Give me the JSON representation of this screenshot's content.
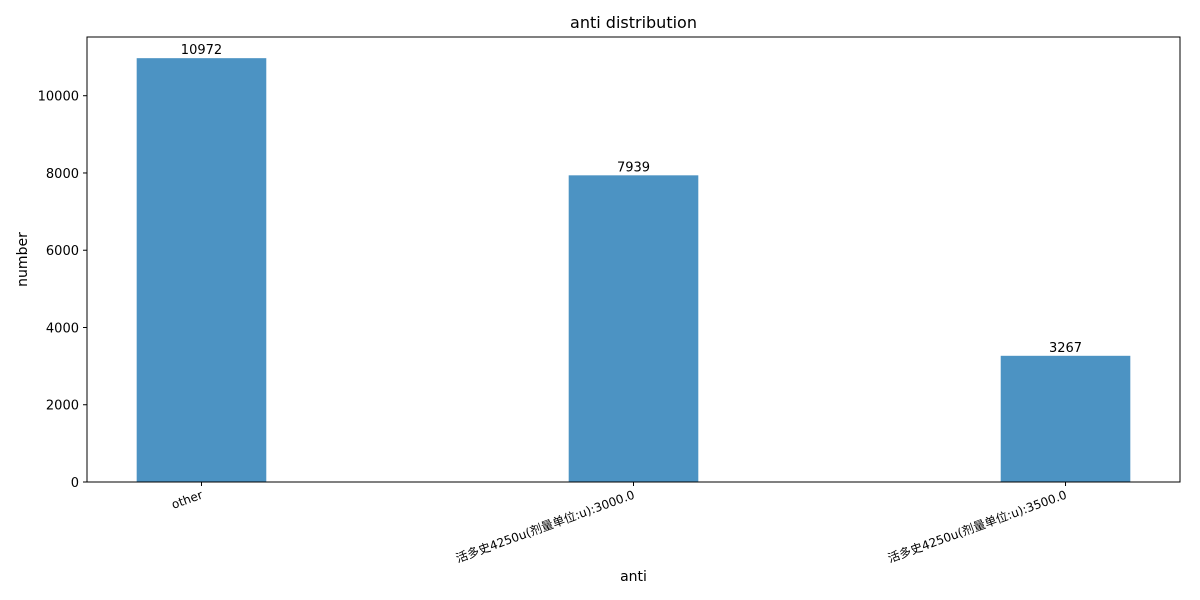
{
  "chart_data": {
    "type": "bar",
    "title": "anti distribution",
    "xlabel": "anti",
    "ylabel": "number",
    "categories": [
      "other",
      "活多史4250u(剂量单位:u):3000.0",
      "活多史4250u(剂量单位:u):3500.0"
    ],
    "values": [
      10972,
      7939,
      3267
    ],
    "value_labels": [
      "10972",
      "7939",
      "3267"
    ],
    "yticks": [
      0,
      2000,
      4000,
      6000,
      8000,
      10000
    ],
    "ytick_labels": [
      "0",
      "2000",
      "4000",
      "6000",
      "8000",
      "10000"
    ],
    "ylim": [
      0,
      11520
    ],
    "xtick_rotation_deg": 20,
    "grid": false,
    "legend": "none",
    "bar_color": "#4c93c3"
  }
}
